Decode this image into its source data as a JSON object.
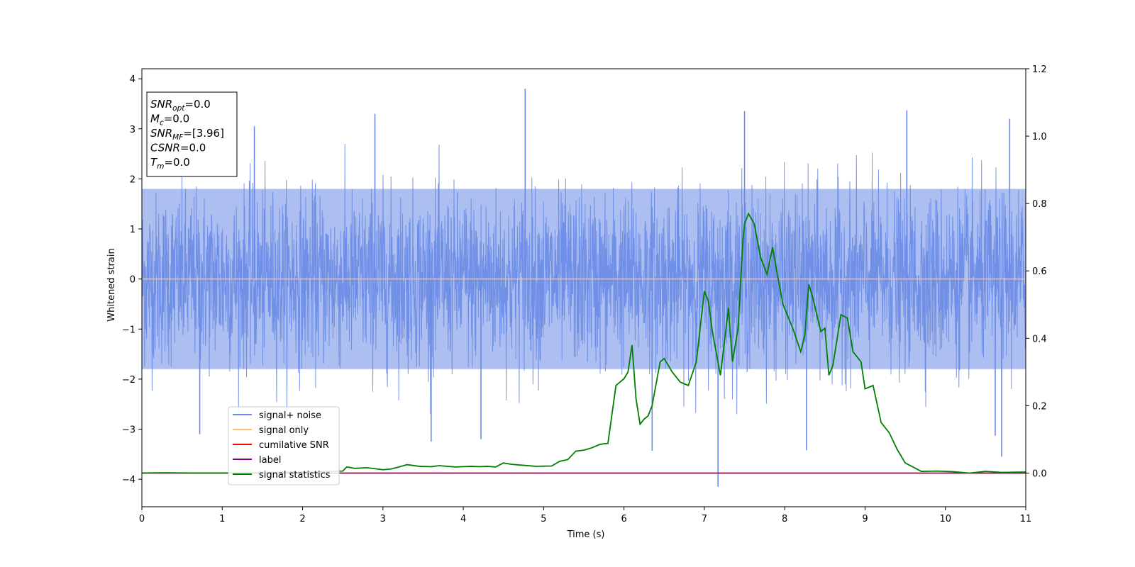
{
  "chart_data": {
    "type": "line",
    "xlabel": "Time (s)",
    "ylabel": "Whitened strain",
    "xlim": [
      0,
      11
    ],
    "ylim": [
      -4.55,
      4.2
    ],
    "y2lim": [
      -0.1,
      1.2
    ],
    "x_ticks": [
      "0",
      "1",
      "2",
      "3",
      "4",
      "5",
      "6",
      "7",
      "8",
      "9",
      "10",
      "11"
    ],
    "y_ticks": [
      "4",
      "3",
      "2",
      "1",
      "0",
      "−1",
      "−2",
      "−3",
      "−4"
    ],
    "y2_ticks": [
      "1.2",
      "1.0",
      "0.8",
      "0.6",
      "0.4",
      "0.2",
      "0.0"
    ],
    "grid": false,
    "legend_position": "lower left",
    "colors": {
      "signal_noise": "#6a8ae6",
      "signal_only": "#ffbf70",
      "cumulative_snr": "#ff0000",
      "label": "#800080",
      "signal_statistics": "#008000"
    },
    "series": [
      {
        "name": "signal+ noise",
        "axis": "left",
        "description": "dense noise band between roughly -2.4 and 2.4 with spikes up to 3.8 and down to -4.15",
        "core_envelope": [
          -1.8,
          1.8
        ],
        "peaks": [
          {
            "x": 4.77,
            "y": 3.8
          },
          {
            "x": 2.9,
            "y": 3.3
          },
          {
            "x": 7.5,
            "y": 3.35
          },
          {
            "x": 9.52,
            "y": 3.37
          },
          {
            "x": 10.8,
            "y": 3.2
          },
          {
            "x": 1.4,
            "y": 3.05
          },
          {
            "x": 7.17,
            "y": -4.15
          },
          {
            "x": 8.27,
            "y": -3.42
          },
          {
            "x": 6.35,
            "y": -3.43
          },
          {
            "x": 10.7,
            "y": -3.55
          },
          {
            "x": 0.72,
            "y": -3.1
          },
          {
            "x": 3.6,
            "y": -3.25
          },
          {
            "x": 4.22,
            "y": -3.2
          },
          {
            "x": 10.62,
            "y": -3.13
          }
        ]
      },
      {
        "name": "signal only",
        "axis": "left",
        "x": [
          0,
          11
        ],
        "y": [
          0,
          0
        ]
      },
      {
        "name": "cumilative SNR",
        "axis": "right",
        "x": [
          0,
          11
        ],
        "y": [
          0,
          0
        ]
      },
      {
        "name": "label",
        "axis": "right",
        "x": [
          0,
          11
        ],
        "y": [
          0,
          0
        ]
      },
      {
        "name": "signal statistics",
        "axis": "right",
        "x": [
          0,
          0.3,
          0.6,
          1.0,
          1.5,
          2.0,
          2.5,
          2.55,
          2.65,
          2.8,
          3.0,
          3.1,
          3.2,
          3.3,
          3.45,
          3.6,
          3.7,
          3.9,
          4.1,
          4.2,
          4.3,
          4.4,
          4.5,
          4.6,
          4.7,
          4.9,
          5.1,
          5.2,
          5.3,
          5.4,
          5.5,
          5.6,
          5.7,
          5.75,
          5.8,
          5.9,
          6.0,
          6.05,
          6.1,
          6.15,
          6.2,
          6.25,
          6.3,
          6.35,
          6.45,
          6.5,
          6.6,
          6.7,
          6.8,
          6.9,
          7.0,
          7.05,
          7.1,
          7.2,
          7.3,
          7.35,
          7.42,
          7.48,
          7.5,
          7.55,
          7.62,
          7.7,
          7.78,
          7.85,
          7.9,
          7.98,
          8.1,
          8.2,
          8.25,
          8.3,
          8.35,
          8.45,
          8.5,
          8.55,
          8.6,
          8.7,
          8.78,
          8.85,
          8.95,
          9.0,
          9.1,
          9.2,
          9.3,
          9.4,
          9.5,
          9.7,
          9.9,
          10.1,
          10.3,
          10.5,
          10.7,
          11.0
        ],
        "y": [
          0.0,
          0.001,
          0.0,
          0.0,
          0.001,
          0.003,
          0.006,
          0.018,
          0.014,
          0.016,
          0.01,
          0.012,
          0.018,
          0.025,
          0.02,
          0.019,
          0.022,
          0.018,
          0.02,
          0.019,
          0.02,
          0.018,
          0.03,
          0.026,
          0.024,
          0.02,
          0.021,
          0.035,
          0.04,
          0.065,
          0.068,
          0.075,
          0.085,
          0.087,
          0.088,
          0.26,
          0.28,
          0.3,
          0.38,
          0.22,
          0.145,
          0.16,
          0.17,
          0.2,
          0.33,
          0.34,
          0.3,
          0.27,
          0.26,
          0.33,
          0.54,
          0.51,
          0.42,
          0.29,
          0.49,
          0.33,
          0.43,
          0.69,
          0.74,
          0.77,
          0.74,
          0.64,
          0.59,
          0.67,
          0.6,
          0.5,
          0.43,
          0.36,
          0.41,
          0.56,
          0.52,
          0.42,
          0.43,
          0.29,
          0.32,
          0.47,
          0.46,
          0.36,
          0.33,
          0.25,
          0.26,
          0.15,
          0.12,
          0.07,
          0.03,
          0.005,
          0.006,
          0.004,
          0.0,
          0.005,
          0.002,
          0.003
        ]
      }
    ],
    "annotation": {
      "lines": [
        {
          "main": "SNR",
          "sub": "opt",
          "rest": "=0.0"
        },
        {
          "main": "M",
          "sub": "c",
          "rest": "=0.0"
        },
        {
          "main": "SNR",
          "sub": "MF",
          "rest": "=[3.96]"
        },
        {
          "main": "CSNR",
          "sub": "",
          "rest": "=0.0"
        },
        {
          "main": "T",
          "sub": "m",
          "rest": "=0.0"
        }
      ]
    }
  }
}
